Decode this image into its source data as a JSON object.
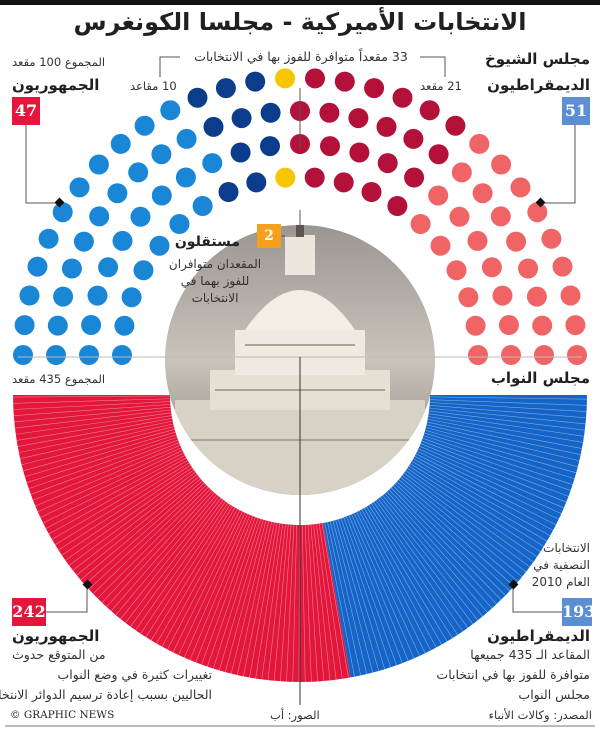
{
  "title": "الانتخابات الأميركية - مجلسا الكونغرس",
  "senate": {
    "heading": "مجلس الشيوخ",
    "total": "المجموع 100 مقعد",
    "up_for_election": "33 مقعداً متوافرة للفوز بها في الانتخابات",
    "rep_up": "10 مقاعد",
    "dem_up": "21 مقعد",
    "republicans": {
      "label": "الجمهوريون",
      "seats": "47"
    },
    "democrats": {
      "label": "الديمقراطيون",
      "seats": "51"
    },
    "independents": {
      "label": "مستقلون",
      "seats": "2",
      "note": [
        "المقعدان متوافران",
        "للفوز بهما في",
        "الانتخابات"
      ]
    }
  },
  "house": {
    "heading": "مجلس النواب",
    "total": "المجموع 435 مقعد",
    "midterm_note": [
      "الانتخابات",
      "النصفية في",
      "العام 2010"
    ],
    "republicans": {
      "label": "الجمهوريون",
      "seats": "242",
      "note": [
        "من المتوقع حدوث",
        "تغييرات كثيرة في وضع النواب",
        "الحاليين بسبب إعادة ترسيم الدوائر الانتخابية"
      ]
    },
    "democrats": {
      "label": "الديمقراطيون",
      "seats": "193",
      "note": [
        "المقاعد الـ 435 جميعها",
        "متوافرة للفوز بها في انتخابات",
        "مجلس النواب"
      ]
    }
  },
  "footer": {
    "credit": "© GRAPHIC NEWS",
    "photos": "الصور: أب",
    "source": "المصدر: وكالات الأنباء"
  },
  "chart_data": {
    "type": "parliament",
    "senate": {
      "total": 100,
      "groups": [
        {
          "name": "republicans_not_up",
          "count": 37,
          "color": "#1a86d6"
        },
        {
          "name": "republicans_up",
          "count": 10,
          "color": "#0b3d8c"
        },
        {
          "name": "independents",
          "count": 2,
          "color": "#f7c600"
        },
        {
          "name": "democrats_up",
          "count": 21,
          "color": "#b3103a"
        },
        {
          "name": "democrats_not_up",
          "count": 30,
          "color": "#f06466"
        }
      ]
    },
    "house": {
      "total": 435,
      "groups": [
        {
          "name": "republicans",
          "count": 242,
          "color": "#e3163c"
        },
        {
          "name": "democrats",
          "count": 193,
          "color": "#1565c8"
        }
      ]
    }
  },
  "colors": {
    "rep_box": "#e3163c",
    "dem_box": "#5b8fd2",
    "ind_box": "#f5a11c"
  }
}
